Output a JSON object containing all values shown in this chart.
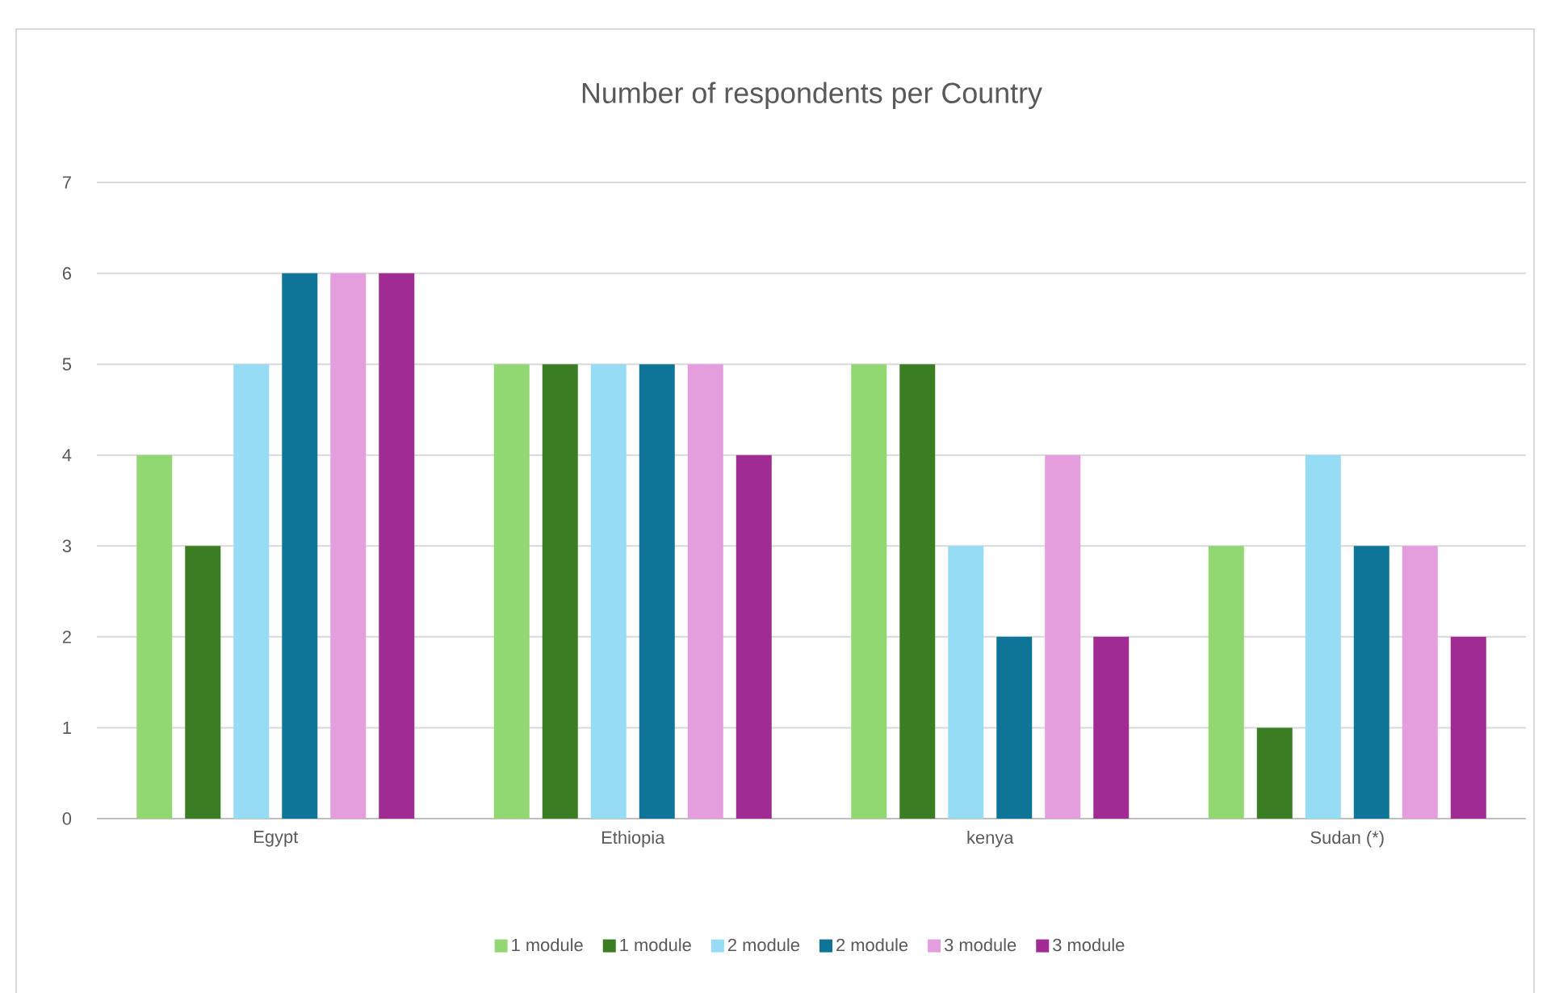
{
  "chart_data": {
    "type": "bar",
    "title": "Number of respondents per Country",
    "categories": [
      "Egypt",
      "Ethiopia",
      "kenya",
      "Sudan (*)"
    ],
    "series": [
      {
        "name": "1 module",
        "color": "#92d872",
        "values": [
          4,
          5,
          5,
          3
        ]
      },
      {
        "name": "1 module",
        "color": "#3a7d22",
        "values": [
          3,
          5,
          5,
          1
        ]
      },
      {
        "name": "2 module",
        "color": "#97dcf5",
        "values": [
          5,
          5,
          3,
          4
        ]
      },
      {
        "name": "2 module",
        "color": "#0e7598",
        "values": [
          6,
          5,
          2,
          3
        ]
      },
      {
        "name": "3 module",
        "color": "#e59edd",
        "values": [
          6,
          5,
          4,
          3
        ]
      },
      {
        "name": "3 module",
        "color": "#a02b93",
        "values": [
          6,
          4,
          2,
          2
        ]
      }
    ],
    "ylim": [
      0,
      7
    ],
    "yticks": [
      0,
      1,
      2,
      3,
      4,
      5,
      6,
      7
    ],
    "grid": "y",
    "legend": "bottom"
  }
}
